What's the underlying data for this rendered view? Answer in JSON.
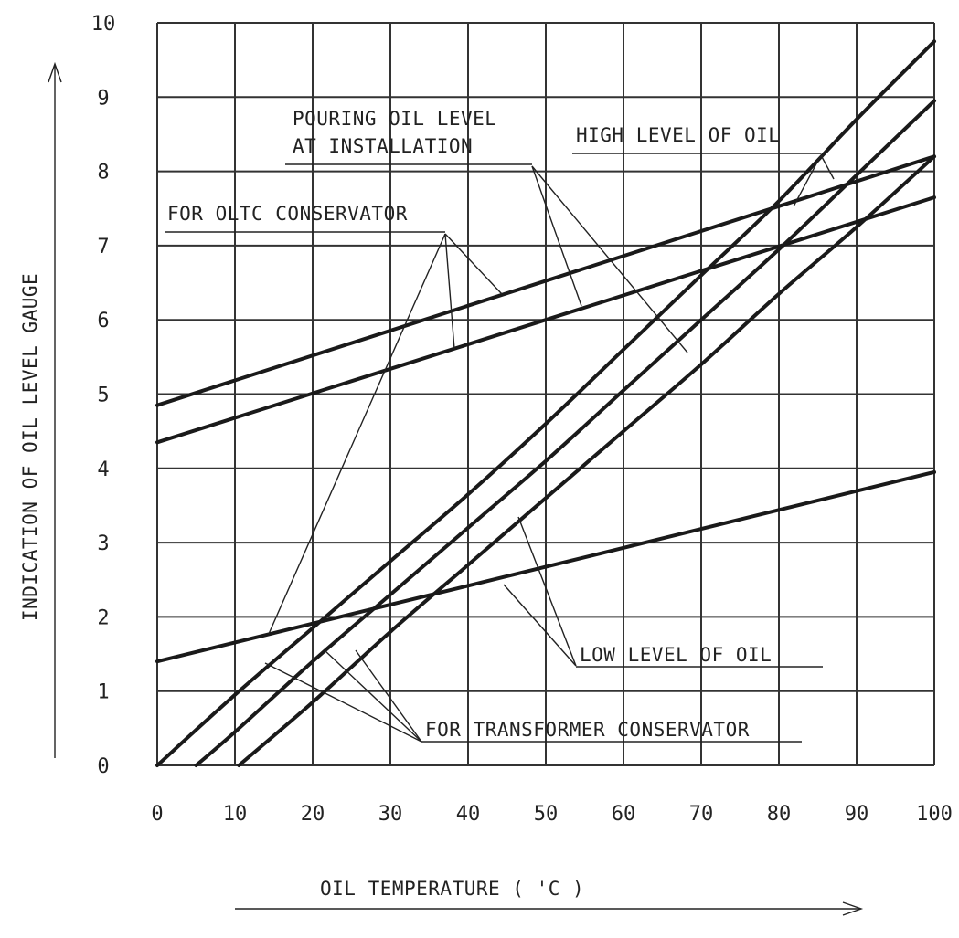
{
  "chart_data": {
    "type": "line",
    "xlabel": "OIL TEMPERATURE  ( 'C )",
    "ylabel": "INDICATION OF OIL LEVEL GAUGE",
    "xlim": [
      0,
      100
    ],
    "ylim": [
      0,
      10
    ],
    "x_ticks": [
      "0",
      "10",
      "20",
      "30",
      "40",
      "50",
      "60",
      "70",
      "80",
      "90",
      "100"
    ],
    "y_ticks": [
      "0",
      "1",
      "2",
      "3",
      "4",
      "5",
      "6",
      "7",
      "8",
      "9",
      "10"
    ],
    "grid": true,
    "series": [
      {
        "group": "OLTC",
        "level": "high",
        "x": [
          0,
          100
        ],
        "y": [
          4.85,
          8.2
        ]
      },
      {
        "group": "OLTC",
        "level": "pouring",
        "x": [
          0,
          100
        ],
        "y": [
          4.35,
          7.65
        ]
      },
      {
        "group": "OLTC",
        "level": "low",
        "x": [
          0,
          100
        ],
        "y": [
          1.4,
          3.95
        ]
      },
      {
        "group": "TRANSFORMER",
        "level": "high",
        "x": [
          0,
          10,
          20,
          30,
          40,
          50,
          60,
          70,
          80,
          90,
          100
        ],
        "y": [
          0,
          0.95,
          1.85,
          2.75,
          3.65,
          4.6,
          5.6,
          6.6,
          7.6,
          8.7,
          9.75
        ]
      },
      {
        "group": "TRANSFORMER",
        "level": "pouring",
        "x": [
          5,
          10,
          20,
          30,
          40,
          50,
          60,
          70,
          80,
          90,
          100
        ],
        "y": [
          0,
          0.45,
          1.4,
          2.3,
          3.2,
          4.1,
          5.05,
          6.0,
          6.95,
          7.95,
          8.95
        ]
      },
      {
        "group": "TRANSFORMER",
        "level": "low",
        "x": [
          10.5,
          20,
          30,
          40,
          50,
          60,
          70,
          80,
          90,
          100
        ],
        "y": [
          0,
          0.85,
          1.8,
          2.7,
          3.6,
          4.5,
          5.4,
          6.35,
          7.25,
          8.2
        ]
      }
    ],
    "annotations": [
      {
        "text": "POURING OIL LEVEL",
        "target": "pouring"
      },
      {
        "text": "AT INSTALLATION",
        "target": "pouring"
      },
      {
        "text": "HIGH LEVEL OF OIL",
        "target": "high"
      },
      {
        "text": "FOR OLTC CONSERVATOR",
        "target": "OLTC"
      },
      {
        "text": "LOW LEVEL OF OIL",
        "target": "low"
      },
      {
        "text": "FOR TRANSFORMER CONSERVATOR",
        "target": "TRANSFORMER"
      }
    ]
  }
}
